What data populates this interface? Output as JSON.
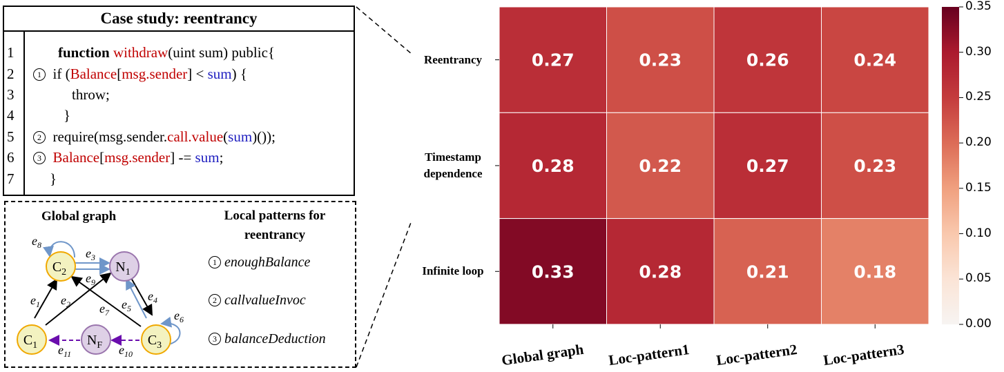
{
  "code_panel": {
    "title": "Case study: reentrancy",
    "line_numbers": [
      "1",
      "2",
      "3",
      "4",
      "5",
      "6",
      "7"
    ],
    "markers": [
      "1",
      "2",
      "3"
    ]
  },
  "graph_panel": {
    "global_title": "Global graph",
    "local_title_1": "Local patterns for",
    "local_title_2": "reentrancy",
    "patterns": [
      {
        "n": "1",
        "name": "enoughBalance"
      },
      {
        "n": "2",
        "name": "callvalueInvoc"
      },
      {
        "n": "3",
        "name": "balanceDeduction"
      }
    ],
    "nodes": {
      "c1": "C",
      "c1s": "1",
      "c2": "C",
      "c2s": "2",
      "c3": "C",
      "c3s": "3",
      "n1": "N",
      "n1s": "1",
      "nf": "N",
      "nfs": "F"
    },
    "edges": {
      "e1": "1",
      "e2": "2",
      "e3": "3",
      "e4": "4",
      "e5": "5",
      "e6": "6",
      "e7": "7",
      "e8": "8",
      "e9": "9",
      "e10": "10",
      "e11": "11"
    }
  },
  "chart_data": {
    "type": "heatmap",
    "rows": [
      "Reentrancy",
      "Timestamp dependence",
      "Infinite loop"
    ],
    "columns": [
      "Global graph",
      "Loc-pattern1",
      "Loc-pattern2",
      "Loc-pattern3"
    ],
    "values": [
      [
        0.27,
        0.23,
        0.26,
        0.24
      ],
      [
        0.28,
        0.22,
        0.27,
        0.23
      ],
      [
        0.33,
        0.28,
        0.21,
        0.18
      ]
    ],
    "labels": [
      [
        "0.27",
        "0.23",
        "0.26",
        "0.24"
      ],
      [
        "0.28",
        "0.22",
        "0.27",
        "0.23"
      ],
      [
        "0.33",
        "0.28",
        "0.21",
        "0.18"
      ]
    ],
    "row_label_lines": [
      [
        "Reentrancy"
      ],
      [
        "Timestamp",
        "dependence"
      ],
      [
        "Infinite loop"
      ]
    ],
    "colorbar": {
      "range": [
        0,
        0.35
      ],
      "ticks": [
        "0.00",
        "0.05",
        "0.10",
        "0.15",
        "0.20",
        "0.25",
        "0.30",
        "0.35"
      ],
      "colormap": "Reds"
    }
  }
}
